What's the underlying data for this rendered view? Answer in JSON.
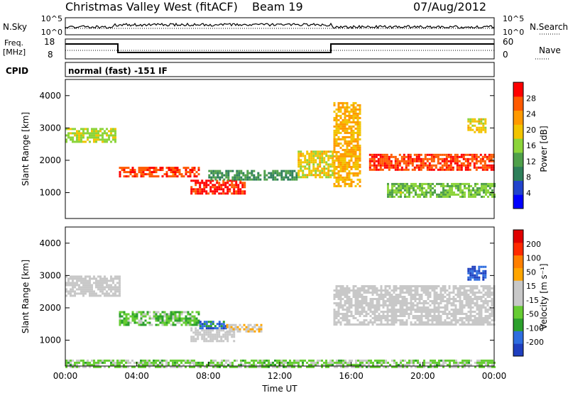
{
  "header": {
    "station": "Christmas Valley West (fitACF)",
    "beam": "Beam 19",
    "date": "07/Aug/2012"
  },
  "noise_panel": {
    "left_label": "N.Sky",
    "left_ticks": [
      "10^5",
      "10^0"
    ],
    "right_label": "N.Search",
    "right_ticks": [
      "10^5",
      "10^0"
    ]
  },
  "freq_panel": {
    "left_label_line1": "Freq.",
    "left_label_line2": "[MHz]",
    "left_ticks": [
      "18",
      "8"
    ],
    "right_label": "Nave",
    "right_ticks": [
      "60",
      "0"
    ]
  },
  "cpid": {
    "label": "CPID",
    "value": "normal (fast) -151 IF"
  },
  "colors": {
    "power_scale": [
      "#0000ff",
      "#2244cc",
      "#2e7f5a",
      "#4fa04a",
      "#8cd43a",
      "#f2c400",
      "#ff9900",
      "#ff5a00",
      "#ff0000"
    ],
    "velocity_scale": [
      "#1f3fbf",
      "#2e6ddf",
      "#2ca02c",
      "#66cc33",
      "#c8c8c8",
      "#c8c8c8",
      "#ffa500",
      "#ff7f00",
      "#ff2a00",
      "#e00000"
    ]
  },
  "chart_data": [
    {
      "type": "heatmap",
      "title": "",
      "xlabel": "Time UT",
      "ylabel": "Slant Range [km]",
      "x_ticks": [
        "00:00",
        "04:00",
        "08:00",
        "12:00",
        "16:00",
        "20:00",
        "00:00"
      ],
      "xlim": [
        0,
        24
      ],
      "ylim": [
        200,
        4500
      ],
      "y_ticks": [
        "1000",
        "2000",
        "3000",
        "4000"
      ],
      "colorbar": {
        "label": "Power [dB]",
        "ticks": [
          "28",
          "24",
          "20",
          "16",
          "12",
          "8",
          "4"
        ],
        "range": [
          0,
          30
        ]
      },
      "features": [
        {
          "t_start": 0.0,
          "t_end": 2.8,
          "range_km": [
            2600,
            3000
          ],
          "power_db": 16
        },
        {
          "t_start": 3.0,
          "t_end": 7.5,
          "range_km": [
            1500,
            1800
          ],
          "power_db": 26
        },
        {
          "t_start": 7.0,
          "t_end": 10.0,
          "range_km": [
            1000,
            1400
          ],
          "power_db": 28
        },
        {
          "t_start": 8.0,
          "t_end": 13.0,
          "range_km": [
            1400,
            1700
          ],
          "power_db": 10
        },
        {
          "t_start": 13.0,
          "t_end": 15.0,
          "range_km": [
            1500,
            2300
          ],
          "power_db": 18
        },
        {
          "t_start": 15.0,
          "t_end": 16.5,
          "range_km": [
            1200,
            3800
          ],
          "power_db": 20
        },
        {
          "t_start": 17.0,
          "t_end": 24.0,
          "range_km": [
            1700,
            2200
          ],
          "power_db": 26
        },
        {
          "t_start": 18.0,
          "t_end": 24.0,
          "range_km": [
            900,
            1300
          ],
          "power_db": 14
        },
        {
          "t_start": 22.5,
          "t_end": 23.5,
          "range_km": [
            2900,
            3300
          ],
          "power_db": 18
        }
      ]
    },
    {
      "type": "heatmap",
      "title": "",
      "xlabel": "Time UT",
      "ylabel": "Slant Range [km]",
      "x_ticks": [
        "00:00",
        "04:00",
        "08:00",
        "12:00",
        "16:00",
        "20:00",
        "00:00"
      ],
      "xlim": [
        0,
        24
      ],
      "ylim": [
        200,
        4500
      ],
      "y_ticks": [
        "1000",
        "2000",
        "3000",
        "4000"
      ],
      "colorbar": {
        "label": "Velocity [m s⁻¹]",
        "ticks": [
          "200",
          "100",
          "50",
          "15",
          "-15",
          "-50",
          "-100",
          "-200"
        ],
        "range": [
          -250,
          250
        ]
      },
      "features": [
        {
          "t_start": 0.0,
          "t_end": 3.0,
          "range_km": [
            2400,
            3000
          ],
          "velocity_ms": 0
        },
        {
          "t_start": 3.0,
          "t_end": 7.5,
          "range_km": [
            1500,
            1900
          ],
          "velocity_ms": -80
        },
        {
          "t_start": 7.0,
          "t_end": 9.5,
          "range_km": [
            1000,
            1400
          ],
          "velocity_ms": 0
        },
        {
          "t_start": 7.5,
          "t_end": 9.0,
          "range_km": [
            1400,
            1600
          ],
          "velocity_ms": -180
        },
        {
          "t_start": 9.0,
          "t_end": 11.0,
          "range_km": [
            1300,
            1500
          ],
          "velocity_ms": 40
        },
        {
          "t_start": 15.0,
          "t_end": 24.0,
          "range_km": [
            1500,
            2700
          ],
          "velocity_ms": 0
        },
        {
          "t_start": 22.5,
          "t_end": 23.5,
          "range_km": [
            2900,
            3300
          ],
          "velocity_ms": -200
        },
        {
          "t_start": 0.0,
          "t_end": 24.0,
          "range_km": [
            200,
            400
          ],
          "velocity_ms": -60
        }
      ]
    }
  ]
}
